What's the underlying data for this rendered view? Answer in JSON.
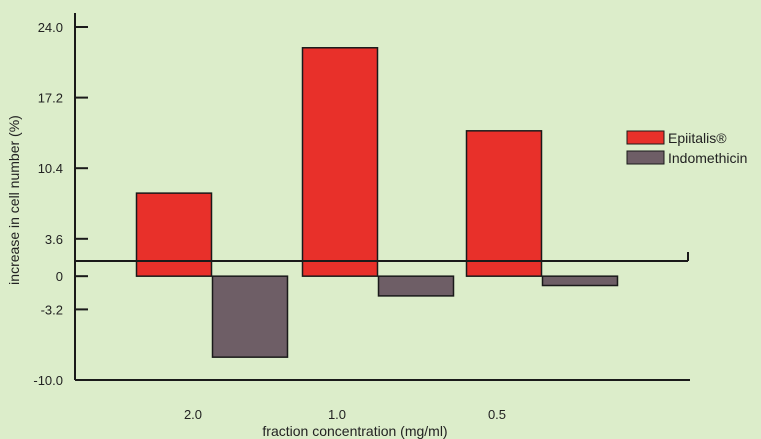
{
  "chart_data": {
    "type": "bar",
    "title": "",
    "xlabel": "fraction concentration (mg/ml)",
    "ylabel": "increase in cell number (%)",
    "categories": [
      "2.0",
      "1.0",
      "0.5"
    ],
    "series": [
      {
        "name": "Epiitalis®",
        "color": "#e8302a",
        "values": [
          8.0,
          22.0,
          14.0
        ]
      },
      {
        "name": "Indomethicin",
        "color": "#6e5e66",
        "values": [
          -7.8,
          -1.9,
          -0.9
        ]
      }
    ],
    "yticks": [
      {
        "value": 24.0,
        "label": "24.0"
      },
      {
        "value": 17.2,
        "label": "17.2"
      },
      {
        "value": 10.4,
        "label": "10.4"
      },
      {
        "value": 3.6,
        "label": "3.6"
      },
      {
        "value": 0,
        "label": "0"
      },
      {
        "value": -3.2,
        "label": "-3.2"
      },
      {
        "value": -10.0,
        "label": "-10.0"
      }
    ],
    "ylim": [
      -10.0,
      24.0
    ],
    "grid": false,
    "legend_position": "right"
  }
}
